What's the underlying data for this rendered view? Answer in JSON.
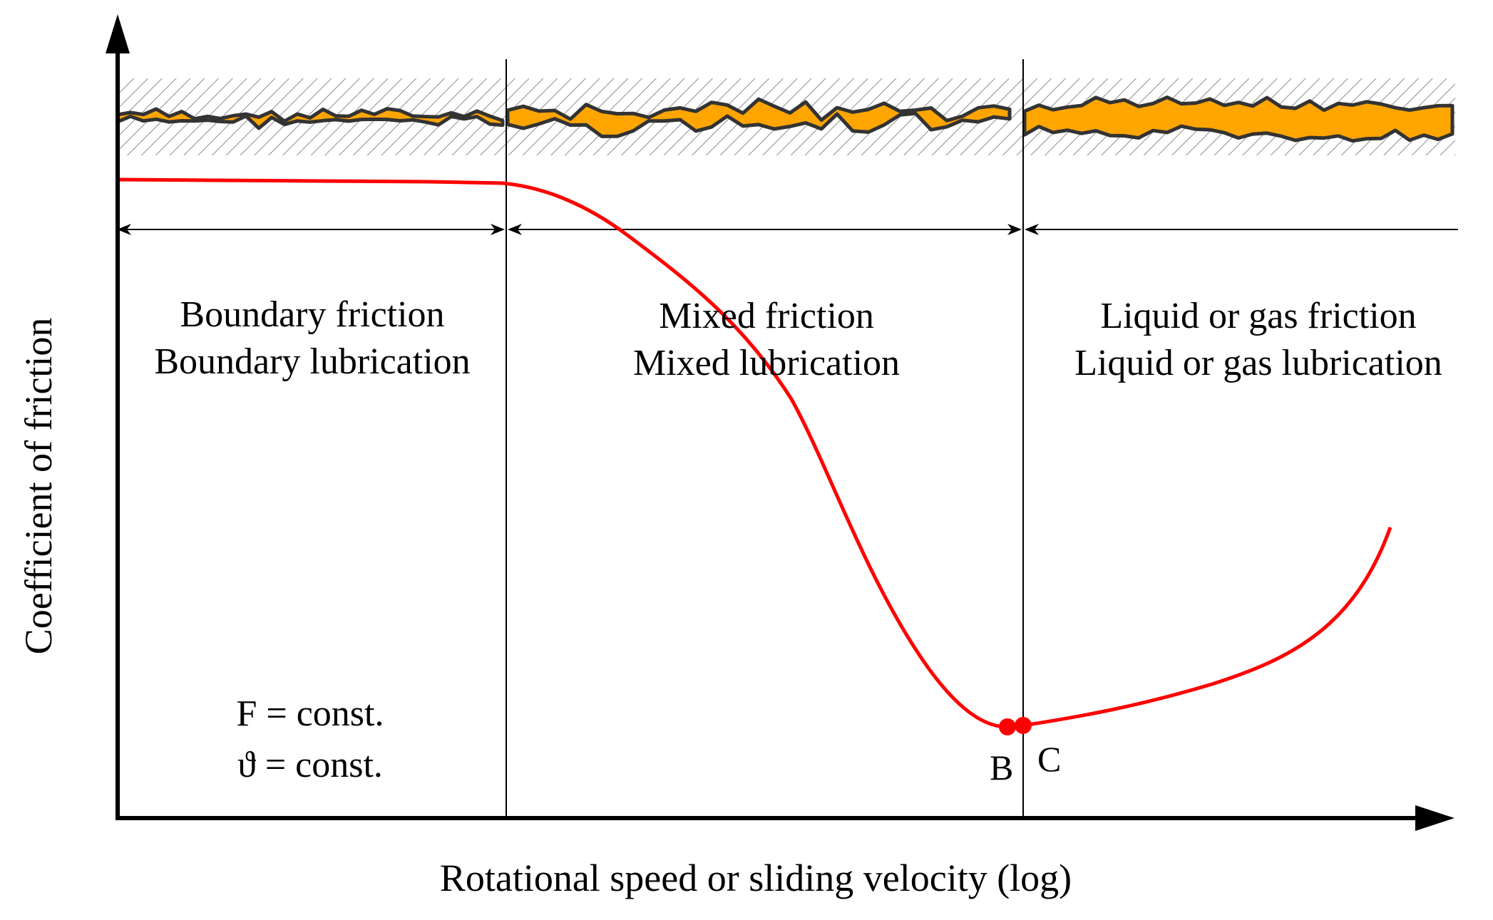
{
  "chart_data": {
    "type": "line",
    "title": "",
    "xlabel": "Rotational speed or sliding velocity (log)",
    "ylabel": "Coefficient of friction",
    "x_scale": "log",
    "regions": [
      {
        "lines": [
          "Boundary friction",
          "Boundary lubrication"
        ]
      },
      {
        "lines": [
          "Mixed friction",
          "Mixed lubrication"
        ]
      },
      {
        "lines": [
          "Liquid or gas friction",
          "Liquid or gas lubrication"
        ]
      }
    ],
    "conditions": [
      "F = const.",
      "ϑ = const."
    ],
    "points": [
      {
        "label": "B",
        "description": "end of mixed friction"
      },
      {
        "label": "C",
        "description": "start of liquid or gas friction"
      }
    ],
    "colors": {
      "curve": "#ff0000",
      "surface_fill": "#ffa500",
      "surface_outline": "#333333",
      "hatch": "#888888",
      "axes": "#000000"
    }
  }
}
